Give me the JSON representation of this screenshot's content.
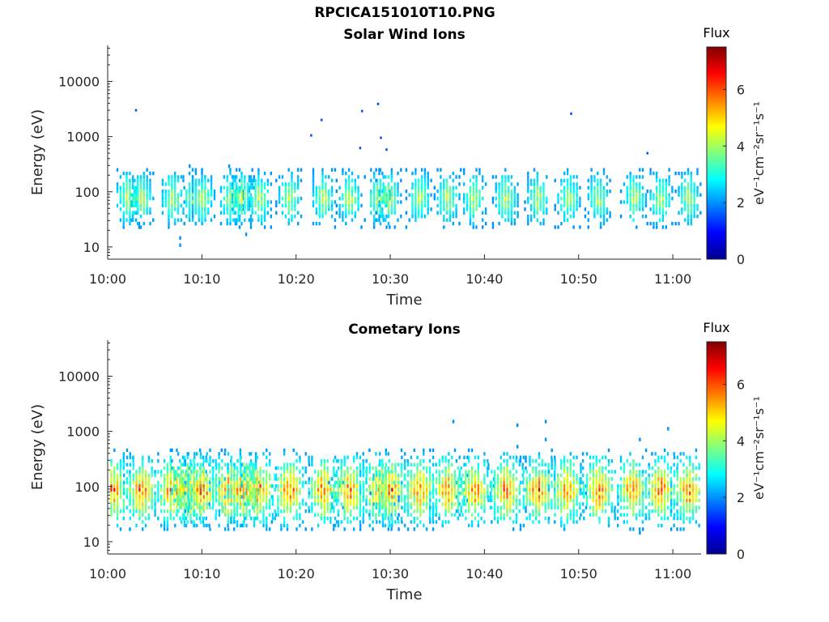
{
  "figure": {
    "title": "RPCICA151010T10.PNG"
  },
  "chart_data": [
    {
      "type": "heatmap",
      "title": "Solar Wind Ions",
      "xlabel": "Time",
      "ylabel": "Energy (eV)",
      "x_ticks": [
        "10:00",
        "10:10",
        "10:20",
        "10:30",
        "10:40",
        "10:50",
        "11:00"
      ],
      "xlim": [
        "10:00",
        "11:03"
      ],
      "y_scale": "log",
      "y_ticks": [
        10,
        100,
        1000,
        10000
      ],
      "ylim": [
        6,
        45000
      ],
      "colorbar": {
        "label": "Flux",
        "unit": "eV⁻¹cm⁻²sr⁻¹s⁻¹",
        "range": [
          0,
          7.5
        ],
        "ticks": [
          0,
          2,
          4,
          6
        ],
        "colormap": "jet"
      },
      "bursts_time_min": [
        2,
        3.5,
        6.8,
        9,
        10,
        13,
        14.2,
        16,
        19.2,
        22.8,
        25.6,
        28.6,
        29.8,
        33,
        36,
        38.8,
        42.2,
        45.6,
        48.8,
        52,
        55.8,
        58.6,
        61.6
      ],
      "peak_flux": 4.5,
      "stray_points": [
        {
          "time_min": 2.9,
          "energy_ev": 3000
        },
        {
          "time_min": 21.5,
          "energy_ev": 1050
        },
        {
          "time_min": 22.6,
          "energy_ev": 2000
        },
        {
          "time_min": 26.9,
          "energy_ev": 2900
        },
        {
          "time_min": 28.6,
          "energy_ev": 3900
        },
        {
          "time_min": 28.9,
          "energy_ev": 950
        },
        {
          "time_min": 26.7,
          "energy_ev": 620
        },
        {
          "time_min": 29.5,
          "energy_ev": 580
        },
        {
          "time_min": 49.1,
          "energy_ev": 2600
        },
        {
          "time_min": 57.2,
          "energy_ev": 500
        }
      ]
    },
    {
      "type": "heatmap",
      "title": "Cometary Ions",
      "xlabel": "Time",
      "ylabel": "Energy (eV)",
      "x_ticks": [
        "10:00",
        "10:10",
        "10:20",
        "10:30",
        "10:40",
        "10:50",
        "11:00"
      ],
      "xlim": [
        "10:00",
        "11:03"
      ],
      "y_scale": "log",
      "y_ticks": [
        10,
        100,
        1000,
        10000
      ],
      "ylim": [
        6,
        45000
      ],
      "colorbar": {
        "label": "Flux",
        "unit": "eV⁻¹cm⁻²sr⁻¹s⁻¹",
        "range": [
          0,
          7.5
        ],
        "ticks": [
          0,
          2,
          4,
          6
        ],
        "colormap": "jet"
      },
      "bursts_time_min": [
        0.5,
        3.5,
        6.8,
        8.6,
        10,
        12.6,
        14.2,
        16,
        19.2,
        22.8,
        25.6,
        28.6,
        30,
        33,
        36,
        38.8,
        42.2,
        45.6,
        48.6,
        52,
        55.6,
        58.6,
        61.6
      ],
      "peak_flux": 6.3
    }
  ]
}
